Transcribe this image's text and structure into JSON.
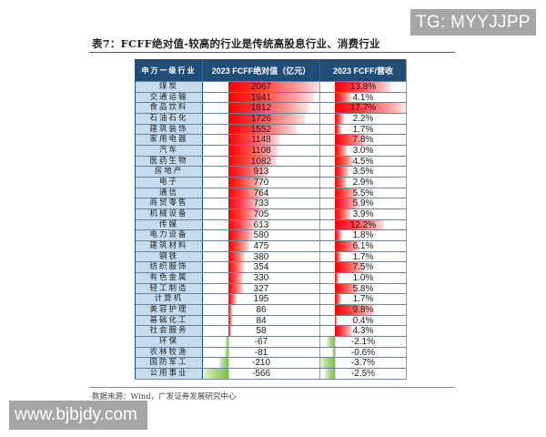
{
  "watermark_top": "TG: MYYJJPP",
  "watermark_bottom": "www.bjbjdy.com",
  "title": "表7：FCFF绝对值-较高的行业是传统高股息行业、消费行业",
  "source": "数据来源：Wind，广发证券发展研究中心",
  "colors": {
    "header_bg": "#1f4e79",
    "industry_col_bg": "#c5dcef",
    "positive_bar": "#ff0000",
    "negative_bar": "#7cc242",
    "watermark_bg": "#a6a6a6"
  },
  "table": {
    "headers": {
      "industry": "申万一级行业",
      "fcff": "2023 FCFF绝对值（亿元）",
      "ratio": "2023 FCFF/营收"
    },
    "rows": [
      {
        "industry": "煤炭",
        "fcff": "2067",
        "ratio": "13.8%"
      },
      {
        "industry": "交通运输",
        "fcff": "1941",
        "ratio": "4.1%"
      },
      {
        "industry": "食品饮料",
        "fcff": "1812",
        "ratio": "17.7%"
      },
      {
        "industry": "石油石化",
        "fcff": "1726",
        "ratio": "2.2%"
      },
      {
        "industry": "建筑装饰",
        "fcff": "1552",
        "ratio": "1.7%"
      },
      {
        "industry": "家用电器",
        "fcff": "1148",
        "ratio": "7.8%"
      },
      {
        "industry": "汽车",
        "fcff": "1108",
        "ratio": "3.0%"
      },
      {
        "industry": "医药生物",
        "fcff": "1082",
        "ratio": "4.5%"
      },
      {
        "industry": "房地产",
        "fcff": "913",
        "ratio": "3.5%"
      },
      {
        "industry": "电子",
        "fcff": "770",
        "ratio": "2.9%"
      },
      {
        "industry": "通信",
        "fcff": "764",
        "ratio": "5.5%"
      },
      {
        "industry": "商贸零售",
        "fcff": "733",
        "ratio": "5.9%"
      },
      {
        "industry": "机械设备",
        "fcff": "705",
        "ratio": "3.9%"
      },
      {
        "industry": "传媒",
        "fcff": "613",
        "ratio": "12.2%"
      },
      {
        "industry": "电力设备",
        "fcff": "580",
        "ratio": "1.8%"
      },
      {
        "industry": "建筑材料",
        "fcff": "475",
        "ratio": "6.1%"
      },
      {
        "industry": "钢铁",
        "fcff": "380",
        "ratio": "1.7%"
      },
      {
        "industry": "纺织服饰",
        "fcff": "354",
        "ratio": "7.5%"
      },
      {
        "industry": "有色金属",
        "fcff": "330",
        "ratio": "1.0%"
      },
      {
        "industry": "轻工制造",
        "fcff": "327",
        "ratio": "5.8%"
      },
      {
        "industry": "计算机",
        "fcff": "195",
        "ratio": "1.7%"
      },
      {
        "industry": "美容护理",
        "fcff": "86",
        "ratio": "9.8%"
      },
      {
        "industry": "基础化工",
        "fcff": "84",
        "ratio": "0.4%"
      },
      {
        "industry": "社会服务",
        "fcff": "58",
        "ratio": "4.3%"
      },
      {
        "industry": "环保",
        "fcff": "-67",
        "ratio": "-2.1%"
      },
      {
        "industry": "农林牧渔",
        "fcff": "-81",
        "ratio": "-0.6%"
      },
      {
        "industry": "国防军工",
        "fcff": "-210",
        "ratio": "-3.7%"
      },
      {
        "industry": "公用事业",
        "fcff": "-566",
        "ratio": "-2.5%"
      }
    ]
  }
}
